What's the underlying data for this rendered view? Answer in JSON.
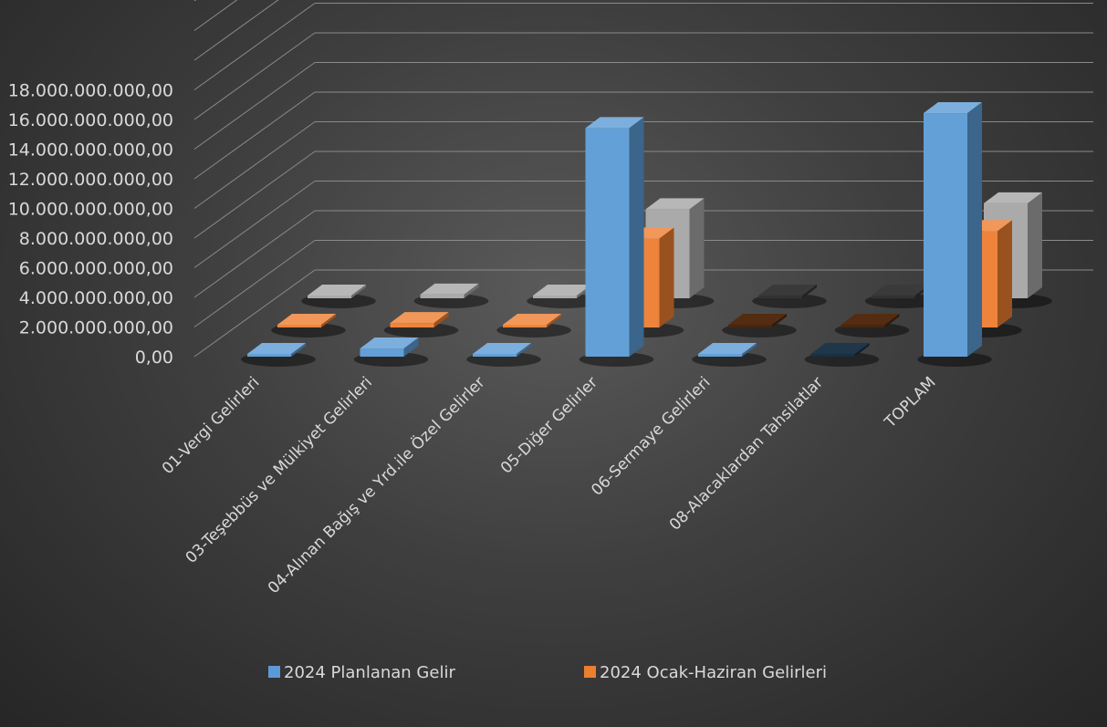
{
  "chart_data": {
    "type": "bar",
    "style": "3d-clustered-column",
    "title": "",
    "xlabel": "",
    "ylabel": "",
    "ylim": [
      0,
      18000000000
    ],
    "yticks": [
      "0,00",
      "2.000.000.000,00",
      "4.000.000.000,00",
      "6.000.000.000,00",
      "8.000.000.000,00",
      "10.000.000.000,00",
      "12.000.000.000,00",
      "14.000.000.000,00",
      "16.000.000.000,00",
      "18.000.000.000,00"
    ],
    "grid": true,
    "legend_position": "bottom",
    "categories": [
      "01-Vergi Gelirleri",
      "03-Teşebbüs ve Mülkiyet Gelirleri",
      "04-Alınan Bağış ve Yrd.ile Özel Gelirler",
      "05-Diğer Gelirler",
      "06-Sermaye Gelirleri",
      "08-Alacaklardan Tahsilatlar",
      "TOPLAM"
    ],
    "series": [
      {
        "name": "2024 Planlanan Gelir",
        "color": "#5b9bd5",
        "values": [
          30000000,
          550000000,
          10000000,
          15400000000,
          150000000,
          0,
          16400000000
        ]
      },
      {
        "name": "2024 Ocak-Haziran Gelirleri",
        "color": "#ed7d31",
        "values": [
          30000000,
          300000000,
          5000000,
          6000000000,
          0,
          0,
          6500000000
        ]
      },
      {
        "name": "",
        "color": "#a5a5a5",
        "values": [
          20000000,
          250000000,
          5000000,
          6000000000,
          0,
          0,
          6400000000
        ]
      }
    ]
  }
}
